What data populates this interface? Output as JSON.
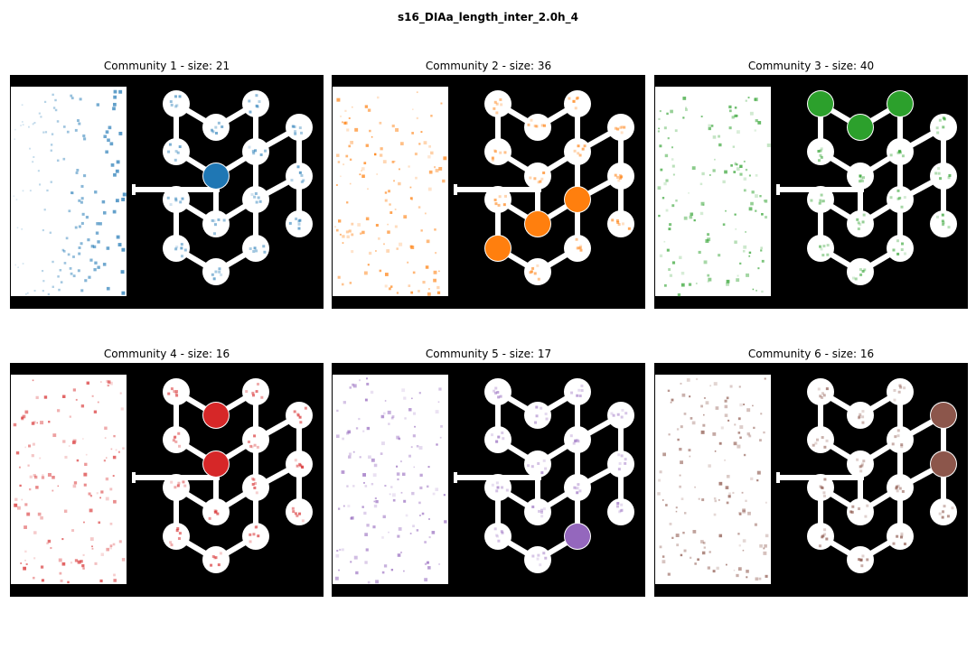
{
  "figure": {
    "title": "s16_DIAa_length_inter_2.0h_4"
  },
  "panels": [
    {
      "title": "Community 1 - size: 21",
      "color": "#1f77b4",
      "active": [
        4
      ]
    },
    {
      "title": "Community 2 - size: 36",
      "color": "#ff7f0e",
      "active": [
        7,
        8,
        9
      ]
    },
    {
      "title": "Community 3 - size: 40",
      "color": "#2ca02c",
      "active": [
        0,
        1,
        2
      ]
    },
    {
      "title": "Community 4 - size: 16",
      "color": "#d62728",
      "active": [
        1,
        4
      ]
    },
    {
      "title": "Community 5 - size: 17",
      "color": "#9467bd",
      "active": [
        11
      ]
    },
    {
      "title": "Community 6 - size: 16",
      "color": "#8c564b",
      "active": [
        12,
        13
      ]
    }
  ]
}
